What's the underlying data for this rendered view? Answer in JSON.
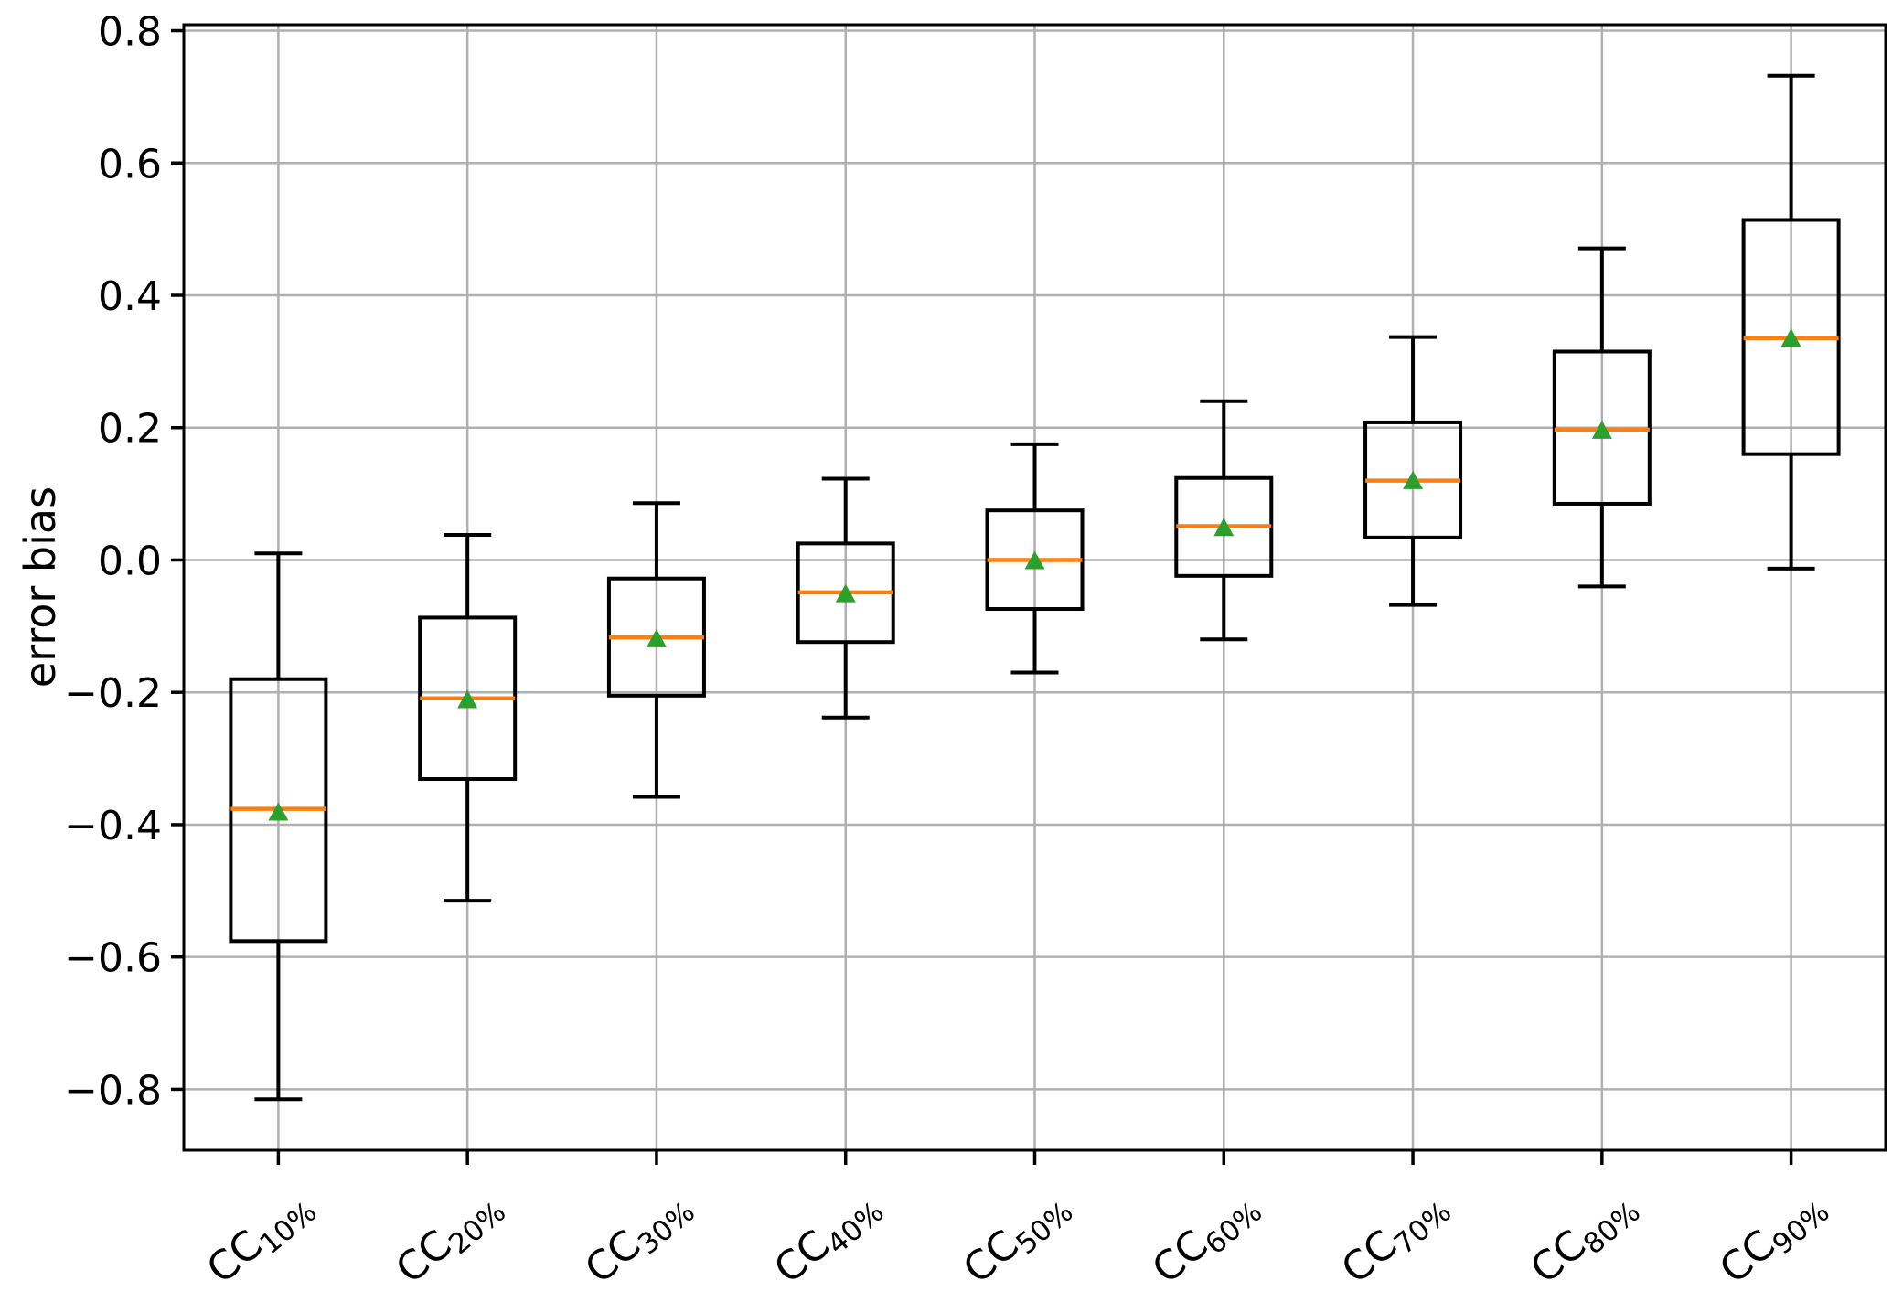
{
  "chart_data": {
    "type": "box",
    "title": "",
    "xlabel": "",
    "ylabel": "error bias",
    "ylim": [
      -0.892,
      0.809
    ],
    "yticks": [
      0.8,
      0.6,
      0.4,
      0.2,
      0.0,
      -0.2,
      -0.4,
      -0.6,
      -0.8
    ],
    "grid": true,
    "legend": "none",
    "category_base": "CC",
    "category_subs": [
      "10%",
      "20%",
      "30%",
      "40%",
      "50%",
      "60%",
      "70%",
      "80%",
      "90%"
    ],
    "categories": [
      "CC10%",
      "CC20%",
      "CC30%",
      "CC40%",
      "CC50%",
      "CC60%",
      "CC70%",
      "CC80%",
      "CC90%"
    ],
    "boxes": [
      {
        "label": "CC10%",
        "whislo": -0.815,
        "q1": -0.576,
        "med": -0.376,
        "q3": -0.18,
        "whishi": 0.01,
        "mean": -0.38
      },
      {
        "label": "CC20%",
        "whislo": -0.515,
        "q1": -0.331,
        "med": -0.209,
        "q3": -0.087,
        "whishi": 0.038,
        "mean": -0.21
      },
      {
        "label": "CC30%",
        "whislo": -0.358,
        "q1": -0.205,
        "med": -0.117,
        "q3": -0.028,
        "whishi": 0.086,
        "mean": -0.118
      },
      {
        "label": "CC40%",
        "whislo": -0.238,
        "q1": -0.124,
        "med": -0.049,
        "q3": 0.025,
        "whishi": 0.123,
        "mean": -0.05
      },
      {
        "label": "CC50%",
        "whislo": -0.17,
        "q1": -0.074,
        "med": 0.0,
        "q3": 0.075,
        "whishi": 0.175,
        "mean": 0.0
      },
      {
        "label": "CC60%",
        "whislo": -0.12,
        "q1": -0.024,
        "med": 0.051,
        "q3": 0.124,
        "whishi": 0.24,
        "mean": 0.05
      },
      {
        "label": "CC70%",
        "whislo": -0.068,
        "q1": 0.034,
        "med": 0.12,
        "q3": 0.208,
        "whishi": 0.337,
        "mean": 0.121
      },
      {
        "label": "CC80%",
        "whislo": -0.04,
        "q1": 0.085,
        "med": 0.197,
        "q3": 0.315,
        "whishi": 0.471,
        "mean": 0.197
      },
      {
        "label": "CC90%",
        "whislo": -0.013,
        "q1": 0.16,
        "med": 0.335,
        "q3": 0.514,
        "whishi": 0.732,
        "mean": 0.336
      }
    ],
    "colors": {
      "median": "#ff7f0e",
      "mean_marker": "#2ca02c",
      "box_line": "#000000",
      "grid": "#b0b0b0",
      "background": "#ffffff",
      "text": "#000000"
    }
  }
}
